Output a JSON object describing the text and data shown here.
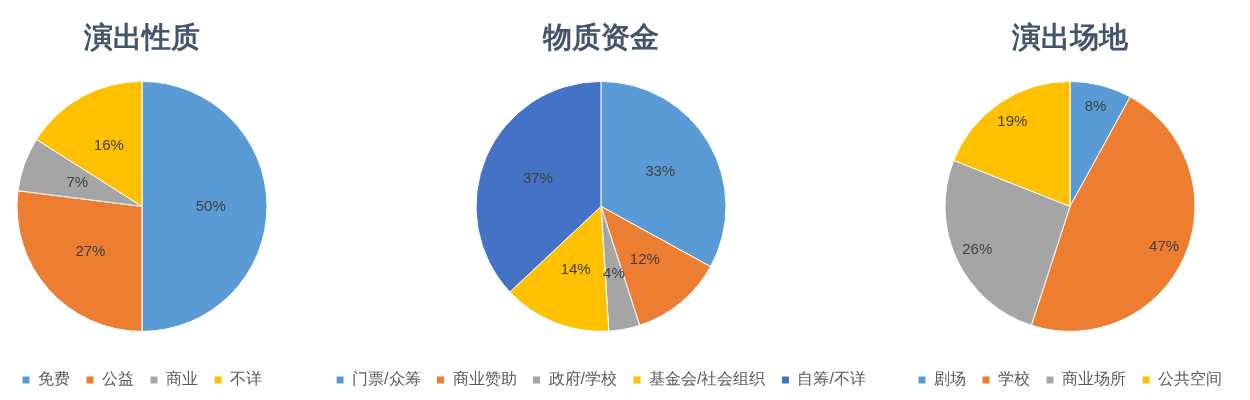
{
  "chart_data": [
    {
      "type": "pie",
      "title": "演出性质",
      "categories": [
        "免费",
        "公益",
        "商业",
        "不详"
      ],
      "values": [
        50,
        27,
        7,
        16
      ],
      "value_labels": [
        "50%",
        "27%",
        "7%",
        "16%"
      ],
      "colors": [
        "#5b9bd5",
        "#ed7d31",
        "#a5a5a5",
        "#ffc000"
      ],
      "legend": "bottom"
    },
    {
      "type": "pie",
      "title": "物质资金",
      "categories": [
        "门票/众筹",
        "商业赞助",
        "政府/学校",
        "基金会/社会组织",
        "自筹/不详"
      ],
      "values": [
        33,
        12,
        4,
        14,
        37
      ],
      "value_labels": [
        "33%",
        "12%",
        "4%",
        "14%",
        "37%"
      ],
      "colors": [
        "#5b9bd5",
        "#ed7d31",
        "#a5a5a5",
        "#ffc000",
        "#4472c4"
      ],
      "legend": "bottom"
    },
    {
      "type": "pie",
      "title": "演出场地",
      "categories": [
        "剧场",
        "学校",
        "商业场所",
        "公共空间"
      ],
      "values": [
        8,
        47,
        26,
        19
      ],
      "value_labels": [
        "8%",
        "47%",
        "26%",
        "19%"
      ],
      "colors": [
        "#5b9bd5",
        "#ed7d31",
        "#a5a5a5",
        "#ffc000"
      ],
      "legend": "bottom"
    }
  ]
}
